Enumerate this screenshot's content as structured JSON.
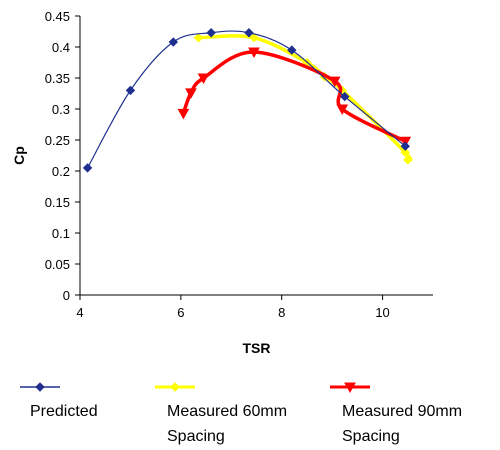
{
  "chart_data": {
    "type": "scatter",
    "title": "",
    "xlabel": "TSR",
    "ylabel": "Cp",
    "xlim": [
      4,
      11
    ],
    "ylim": [
      0,
      0.45
    ],
    "x_ticks": [
      "4",
      "6",
      "8",
      "10"
    ],
    "y_ticks": [
      "0",
      "0.05",
      "0.1",
      "0.15",
      "0.2",
      "0.25",
      "0.3",
      "0.35",
      "0.4",
      "0.45"
    ],
    "grid": false,
    "legend_position": "bottom",
    "series": [
      {
        "name": "Predicted",
        "color": "#1f2f8f",
        "marker": "diamond",
        "line": "smooth",
        "x": [
          4.15,
          5.0,
          5.85,
          6.6,
          7.35,
          8.2,
          9.25,
          10.45
        ],
        "y": [
          0.205,
          0.33,
          0.408,
          0.423,
          0.423,
          0.395,
          0.32,
          0.24
        ]
      },
      {
        "name": "Measured 60mm Spacing",
        "color": "#ffff00",
        "marker": "diamond",
        "line": "smooth",
        "x": [
          6.35,
          7.45,
          8.5,
          8.85,
          9.2,
          10.45,
          10.5
        ],
        "y": [
          0.415,
          0.415,
          0.375,
          0.352,
          0.33,
          0.23,
          0.218
        ]
      },
      {
        "name": "Measured 90mm Spacing",
        "color": "#ff0000",
        "marker": "triangle",
        "line": "smooth",
        "x": [
          6.05,
          6.2,
          6.45,
          7.45,
          9.05,
          9.2,
          10.45
        ],
        "y": [
          0.293,
          0.326,
          0.35,
          0.392,
          0.345,
          0.3,
          0.248
        ]
      }
    ]
  },
  "legend": [
    {
      "label_line1": "Predicted",
      "label_line2": ""
    },
    {
      "label_line1": "Measured 60mm",
      "label_line2": "Spacing"
    },
    {
      "label_line1": "Measured 90mm",
      "label_line2": "Spacing"
    }
  ]
}
